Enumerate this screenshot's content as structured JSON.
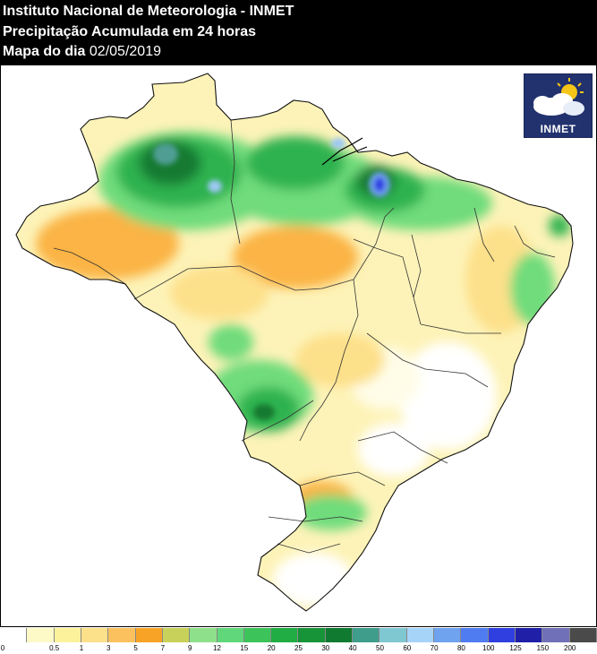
{
  "header": {
    "title": "Instituto Nacional de Meteorologia - INMET",
    "subtitle": "Precipitação Acumulada em 24 horas",
    "date_label": "Mapa do dia",
    "date_value": "02/05/2019"
  },
  "logo": {
    "text": "INMET"
  },
  "legend": {
    "ticks": [
      "0",
      "0.5",
      "1",
      "3",
      "5",
      "7",
      "9",
      "12",
      "15",
      "20",
      "25",
      "30",
      "40",
      "50",
      "60",
      "70",
      "80",
      "100",
      "125",
      "150",
      "200"
    ],
    "colors": [
      "#ffffff",
      "#fdfac8",
      "#fdf29c",
      "#fde08a",
      "#fbc15e",
      "#f9a326",
      "#c8d25a",
      "#8fe08a",
      "#5fd77a",
      "#3cc35a",
      "#22ad44",
      "#179438",
      "#0f7a30",
      "#3f9d8c",
      "#7fc8d2",
      "#a6d4f8",
      "#6fa3f0",
      "#4f7cf0",
      "#2f3fe0",
      "#1f1fa8",
      "#7070b8",
      "#4a4a4a"
    ]
  },
  "map": {
    "colors": {
      "land": "#fdf3b8",
      "dry": "#ffffff",
      "light": "#fde08a",
      "orange": "#fbb444",
      "green_light": "#6fdc7c",
      "green": "#2fb24f",
      "green_dark": "#137a33",
      "teal": "#4f9e94",
      "blue": "#3a4fe0",
      "blue_light": "#9fc8f5",
      "border": "#333333"
    }
  }
}
